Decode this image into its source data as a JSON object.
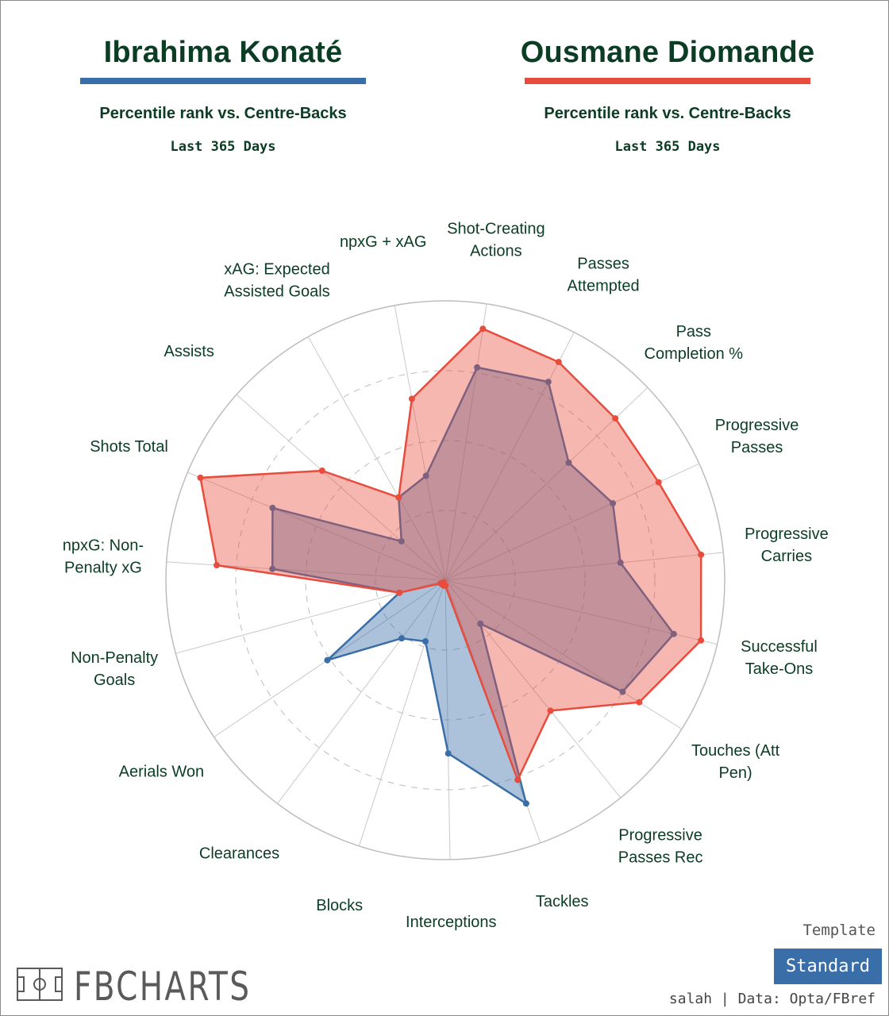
{
  "header": {
    "left": {
      "name": "Ibrahima Konaté",
      "subtitle": "Percentile rank vs. Centre-Backs",
      "period": "Last 365 Days",
      "color": "#3a6ea8"
    },
    "right": {
      "name": "Ousmane Diomande",
      "subtitle": "Percentile rank vs. Centre-Backs",
      "period": "Last 365 Days",
      "color": "#e84c3d"
    }
  },
  "chart_data": {
    "type": "radar",
    "scale": [
      0,
      100
    ],
    "grid": true,
    "axes": [
      {
        "name": "Shot-Creating Actions",
        "lines": [
          "Shot-Creating",
          "Actions"
        ]
      },
      {
        "name": "Passes Attempted",
        "lines": [
          "Passes",
          "Attempted"
        ]
      },
      {
        "name": "Pass Completion %",
        "lines": [
          "Pass",
          "Completion %"
        ]
      },
      {
        "name": "Progressive Passes",
        "lines": [
          "Progressive",
          "Passes"
        ]
      },
      {
        "name": "Progressive Carries",
        "lines": [
          "Progressive",
          "Carries"
        ]
      },
      {
        "name": "Successful Take-Ons",
        "lines": [
          "Successful",
          "Take-Ons"
        ]
      },
      {
        "name": "Touches (Att Pen)",
        "lines": [
          "Touches (Att",
          "Pen)"
        ]
      },
      {
        "name": "Progressive Passes Rec",
        "lines": [
          "Progressive",
          "Passes Rec"
        ]
      },
      {
        "name": "Tackles",
        "lines": [
          "Tackles"
        ]
      },
      {
        "name": "Interceptions",
        "lines": [
          "Interceptions"
        ]
      },
      {
        "name": "Blocks",
        "lines": [
          "Blocks"
        ]
      },
      {
        "name": "Clearances",
        "lines": [
          "Clearances"
        ]
      },
      {
        "name": "Aerials Won",
        "lines": [
          "Aerials Won"
        ]
      },
      {
        "name": "Non-Penalty Goals",
        "lines": [
          "Non-Penalty",
          "Goals"
        ]
      },
      {
        "name": "npxG: Non-Penalty xG",
        "lines": [
          "npxG: Non-",
          "Penalty xG"
        ]
      },
      {
        "name": "Shots Total",
        "lines": [
          "Shots Total"
        ]
      },
      {
        "name": "Assists",
        "lines": [
          "Assists"
        ]
      },
      {
        "name": "xAG: Expected Assisted Goals",
        "lines": [
          "xAG: Expected",
          "Assisted Goals"
        ]
      },
      {
        "name": "npxG + xAG",
        "lines": [
          "npxG + xAG"
        ]
      }
    ],
    "series": [
      {
        "name": "Ibrahima Konaté",
        "color": "#3a6ea8",
        "values": [
          77,
          80,
          61,
          66,
          63,
          84,
          75,
          20,
          85,
          62,
          23,
          26,
          51,
          17,
          62,
          67,
          21,
          34,
          38
        ]
      },
      {
        "name": "Ousmane Diomande",
        "color": "#e84c3d",
        "values": [
          91,
          88,
          84,
          84,
          92,
          94,
          82,
          60,
          76,
          2,
          2,
          1,
          2,
          17,
          82,
          95,
          59,
          34,
          66
        ]
      }
    ]
  },
  "template": {
    "caption": "Template",
    "value": "Standard"
  },
  "credit": "salah | Data: Opta/FBref",
  "brand": "FBCHARTS"
}
